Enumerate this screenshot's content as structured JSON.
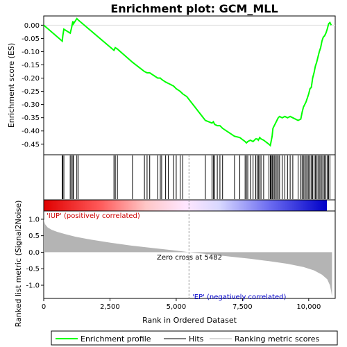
{
  "chart_data": {
    "type": "line",
    "title": "Enrichment plot: GCM_MLL",
    "es_panel": {
      "ylabel": "Enrichment score (ES)",
      "ylim": [
        -0.49,
        0.035
      ],
      "yticks": [
        0.0,
        -0.05,
        -0.1,
        -0.15,
        -0.2,
        -0.25,
        -0.3,
        -0.35,
        -0.4,
        -0.45
      ],
      "ytick_labels": [
        "0.00",
        "-0.05",
        "-0.10",
        "-0.15",
        "-0.20",
        "-0.25",
        "-0.30",
        "-0.35",
        "-0.40",
        "-0.45"
      ],
      "series": [
        {
          "name": "Enrichment profile",
          "color": "#00ff00",
          "x": [
            0,
            700,
            720,
            760,
            1000,
            1050,
            1100,
            1120,
            1250,
            1300,
            2650,
            2700,
            2780,
            3350,
            3800,
            3900,
            4000,
            4300,
            4400,
            4450,
            4600,
            4700,
            4900,
            5000,
            5150,
            5250,
            5400,
            6100,
            6350,
            6400,
            6450,
            6550,
            6650,
            6750,
            7200,
            7400,
            7600,
            7650,
            7700,
            7800,
            7900,
            8000,
            8050,
            8100,
            8150,
            8200,
            8300,
            8500,
            8550,
            8580,
            8620,
            8650,
            8700,
            8750,
            8800,
            8850,
            8900,
            9000,
            9100,
            9200,
            9300,
            9400,
            9600,
            9700,
            9750,
            9800,
            9850,
            9900,
            9950,
            10000,
            10050,
            10100,
            10150,
            10200,
            10250,
            10300,
            10350,
            10400,
            10450,
            10500,
            10550,
            10600,
            10650,
            10700,
            10750,
            10800,
            10850
          ],
          "y": [
            0.0,
            -0.06,
            -0.04,
            -0.015,
            -0.03,
            -0.01,
            0.015,
            0.005,
            0.025,
            0.02,
            -0.095,
            -0.085,
            -0.09,
            -0.14,
            -0.175,
            -0.18,
            -0.18,
            -0.2,
            -0.2,
            -0.205,
            -0.215,
            -0.22,
            -0.23,
            -0.24,
            -0.25,
            -0.26,
            -0.27,
            -0.36,
            -0.37,
            -0.365,
            -0.375,
            -0.38,
            -0.38,
            -0.39,
            -0.42,
            -0.425,
            -0.44,
            -0.445,
            -0.44,
            -0.435,
            -0.44,
            -0.43,
            -0.43,
            -0.435,
            -0.425,
            -0.43,
            -0.435,
            -0.45,
            -0.455,
            -0.44,
            -0.42,
            -0.39,
            -0.38,
            -0.37,
            -0.36,
            -0.35,
            -0.345,
            -0.35,
            -0.345,
            -0.35,
            -0.345,
            -0.35,
            -0.36,
            -0.355,
            -0.33,
            -0.31,
            -0.3,
            -0.29,
            -0.275,
            -0.26,
            -0.24,
            -0.235,
            -0.2,
            -0.18,
            -0.155,
            -0.14,
            -0.12,
            -0.1,
            -0.085,
            -0.06,
            -0.045,
            -0.04,
            -0.03,
            -0.015,
            0.005,
            0.01,
            0.0
          ]
        }
      ]
    },
    "hits": [
      700,
      720,
      760,
      1000,
      1050,
      1100,
      1120,
      1250,
      1300,
      2650,
      2700,
      2780,
      3350,
      3800,
      3900,
      4000,
      4300,
      4400,
      4450,
      4600,
      4700,
      4900,
      5000,
      5150,
      5250,
      6100,
      6350,
      6400,
      6450,
      6550,
      6650,
      6750,
      7200,
      7400,
      7600,
      7650,
      7700,
      7800,
      7900,
      8000,
      8050,
      8100,
      8150,
      8200,
      8300,
      8500,
      8550,
      8580,
      8620,
      8650,
      8700,
      8750,
      8800,
      8850,
      8900,
      9000,
      9100,
      9200,
      9300,
      9400,
      9600,
      9700,
      9750,
      9800,
      9850,
      9900,
      9950,
      10000,
      10050,
      10100,
      10150,
      10200,
      10250,
      10300,
      10350,
      10400,
      10450,
      10500,
      10550,
      10600,
      10650,
      10700,
      10750,
      10800
    ],
    "rank_panel": {
      "ylabel": "Ranked list metric (Signal2Noise)",
      "ylim": [
        -1.4,
        1.25
      ],
      "yticks": [
        1.0,
        0.5,
        0.0,
        -0.5,
        -1.0
      ],
      "ytick_labels": [
        "1.0",
        "0.5",
        "0.0",
        "-0.5",
        "-1.0"
      ],
      "metric_x": [
        0,
        50,
        150,
        300,
        500,
        800,
        1200,
        1800,
        2500,
        3300,
        4200,
        5000,
        5482,
        6200,
        7000,
        7800,
        8500,
        9200,
        9800,
        10200,
        10500,
        10700,
        10800,
        10850,
        10880
      ],
      "metric_y": [
        1.0,
        0.85,
        0.75,
        0.68,
        0.62,
        0.55,
        0.47,
        0.38,
        0.29,
        0.2,
        0.12,
        0.05,
        0.0,
        -0.06,
        -0.13,
        -0.2,
        -0.27,
        -0.35,
        -0.45,
        -0.55,
        -0.68,
        -0.82,
        -1.0,
        -1.2,
        -1.35
      ],
      "zero_cross_label": "Zero cross at 5482",
      "zero_cross": 5482,
      "pos_label": "'IUP' (positively correlated)",
      "neg_label": "'EP' (negatively correlated)"
    },
    "xlabel": "Rank in Ordered Dataset",
    "xlim": [
      0,
      11000
    ],
    "xticks": [
      0,
      2500,
      5000,
      7500,
      10000
    ],
    "xtick_labels": [
      "0",
      "2,500",
      "5,000",
      "7,500",
      "10,000"
    ],
    "n_genes": 10880,
    "legend": {
      "placement": "bottom",
      "entries": [
        {
          "label": "Enrichment profile",
          "color": "#00ff00"
        },
        {
          "label": "Hits",
          "color": "#000000"
        },
        {
          "label": "Ranking metric scores",
          "color": "#b0b0b0"
        }
      ]
    },
    "colors": {
      "profile": "#00ff00",
      "metric_fill": "#b4b4b4",
      "pos_text": "#cc0000",
      "neg_text": "#0000cc"
    }
  }
}
